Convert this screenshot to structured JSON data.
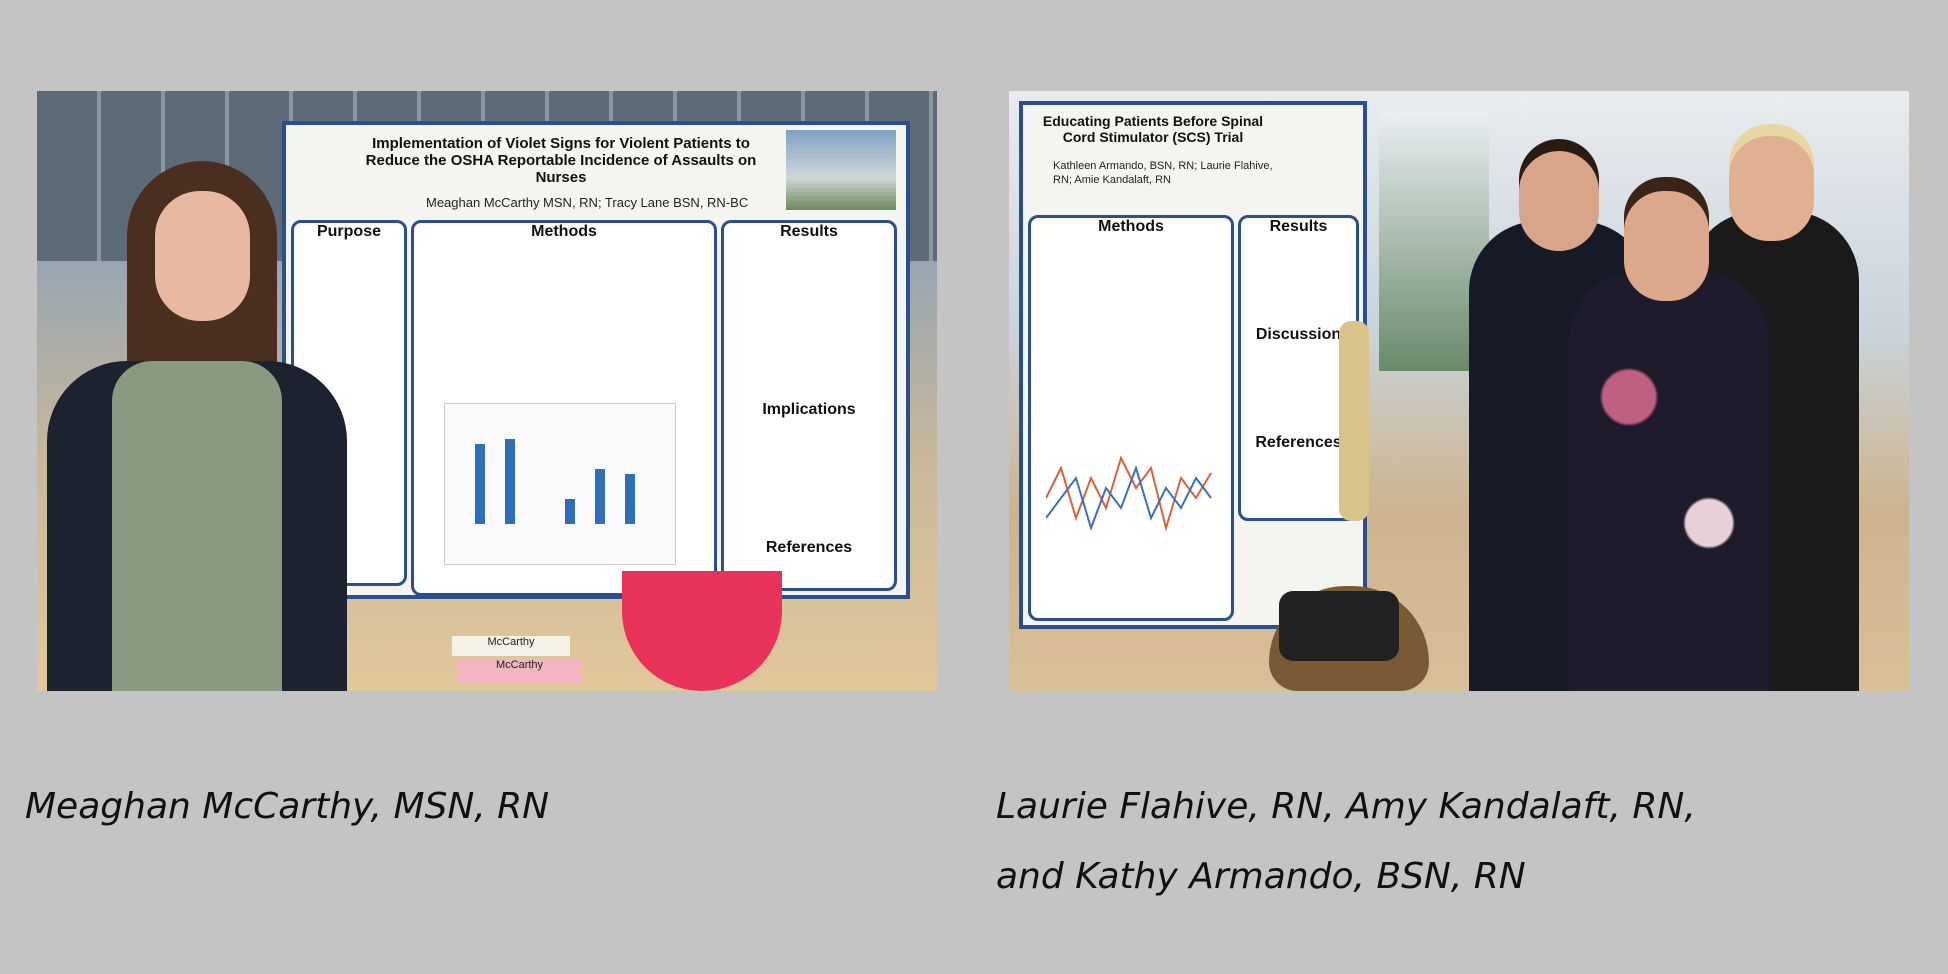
{
  "photos": [
    {
      "poster_title": "Implementation of Violet Signs for Violent Patients to Reduce the OSHA Reportable Incidence of Assaults on Nurses",
      "poster_authors": "Meaghan McCarthy MSN, RN; Tracy Lane BSN, RN-BC",
      "sections": [
        "Purpose",
        "Methods",
        "Results",
        "Implications",
        "References"
      ],
      "name_cards": [
        "McCarthy",
        "McCarthy"
      ],
      "caption": "Meaghan McCarthy, MSN, RN"
    },
    {
      "poster_title": "Educating Patients Before Spinal Cord Stimulator (SCS) Trial",
      "poster_authors": "Kathleen Armando, BSN, RN; Laurie Flahive, RN; Amie Kandalaft, RN",
      "sections": [
        "Methods",
        "Results",
        "Discussion",
        "References"
      ],
      "caption_line1": "Laurie Flahive, RN, Amy Kandalaft, RN,",
      "caption_line2": "and Kathy Armando, BSN, RN"
    }
  ],
  "colors": {
    "background": "#c4c4c4",
    "poster_border": "#2b4f8a",
    "bowl": "#e8325a"
  }
}
